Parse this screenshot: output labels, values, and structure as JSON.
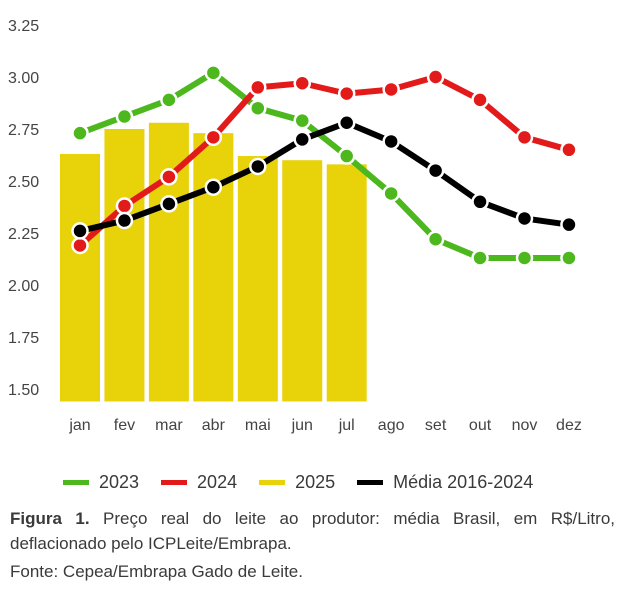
{
  "chart_data": {
    "type": "bar+line",
    "title": "",
    "xlabel": "",
    "ylabel": "",
    "categories": [
      "jan",
      "fev",
      "mar",
      "abr",
      "mai",
      "jun",
      "jul",
      "ago",
      "set",
      "out",
      "nov",
      "dez"
    ],
    "ylim": [
      1.44,
      3.25
    ],
    "yticks": [
      1.5,
      1.75,
      2.0,
      2.25,
      2.5,
      2.75,
      3.0,
      3.25
    ],
    "ytick_labels": [
      "1.50",
      "1.75",
      "2.00",
      "2.25",
      "2.50",
      "2.75",
      "3.00",
      "3.25"
    ],
    "grid": false,
    "legend_position": "bottom",
    "bars": {
      "name": "2025",
      "color": "#E8D20A",
      "values": [
        2.63,
        2.75,
        2.78,
        2.73,
        2.62,
        2.6,
        2.58,
        null,
        null,
        null,
        null,
        null
      ]
    },
    "series": [
      {
        "name": "2023",
        "color": "#4CB81E",
        "values": [
          2.73,
          2.81,
          2.89,
          3.02,
          2.85,
          2.79,
          2.62,
          2.44,
          2.22,
          2.13,
          2.13,
          2.13
        ]
      },
      {
        "name": "2024",
        "color": "#E31A1A",
        "values": [
          2.19,
          2.38,
          2.52,
          2.71,
          2.95,
          2.97,
          2.92,
          2.94,
          3.0,
          2.89,
          2.71,
          2.65
        ]
      },
      {
        "name": "Média 2016-2024",
        "color": "#000000",
        "values": [
          2.26,
          2.31,
          2.39,
          2.47,
          2.57,
          2.7,
          2.78,
          2.69,
          2.55,
          2.4,
          2.32,
          2.29
        ]
      }
    ],
    "legend": [
      {
        "label": "2023",
        "color": "#4CB81E"
      },
      {
        "label": "2024",
        "color": "#E31A1A"
      },
      {
        "label": "2025",
        "color": "#E8D20A"
      },
      {
        "label": "Média 2016-2024",
        "color": "#000000"
      }
    ]
  },
  "caption": {
    "figure_label": "Figura 1.",
    "text": " Preço real do leite ao produtor: média Brasil, em R$/Litro, deflacionado pelo ICPLeite/Embrapa.",
    "source": "Fonte: Cepea/Embrapa Gado de Leite."
  }
}
